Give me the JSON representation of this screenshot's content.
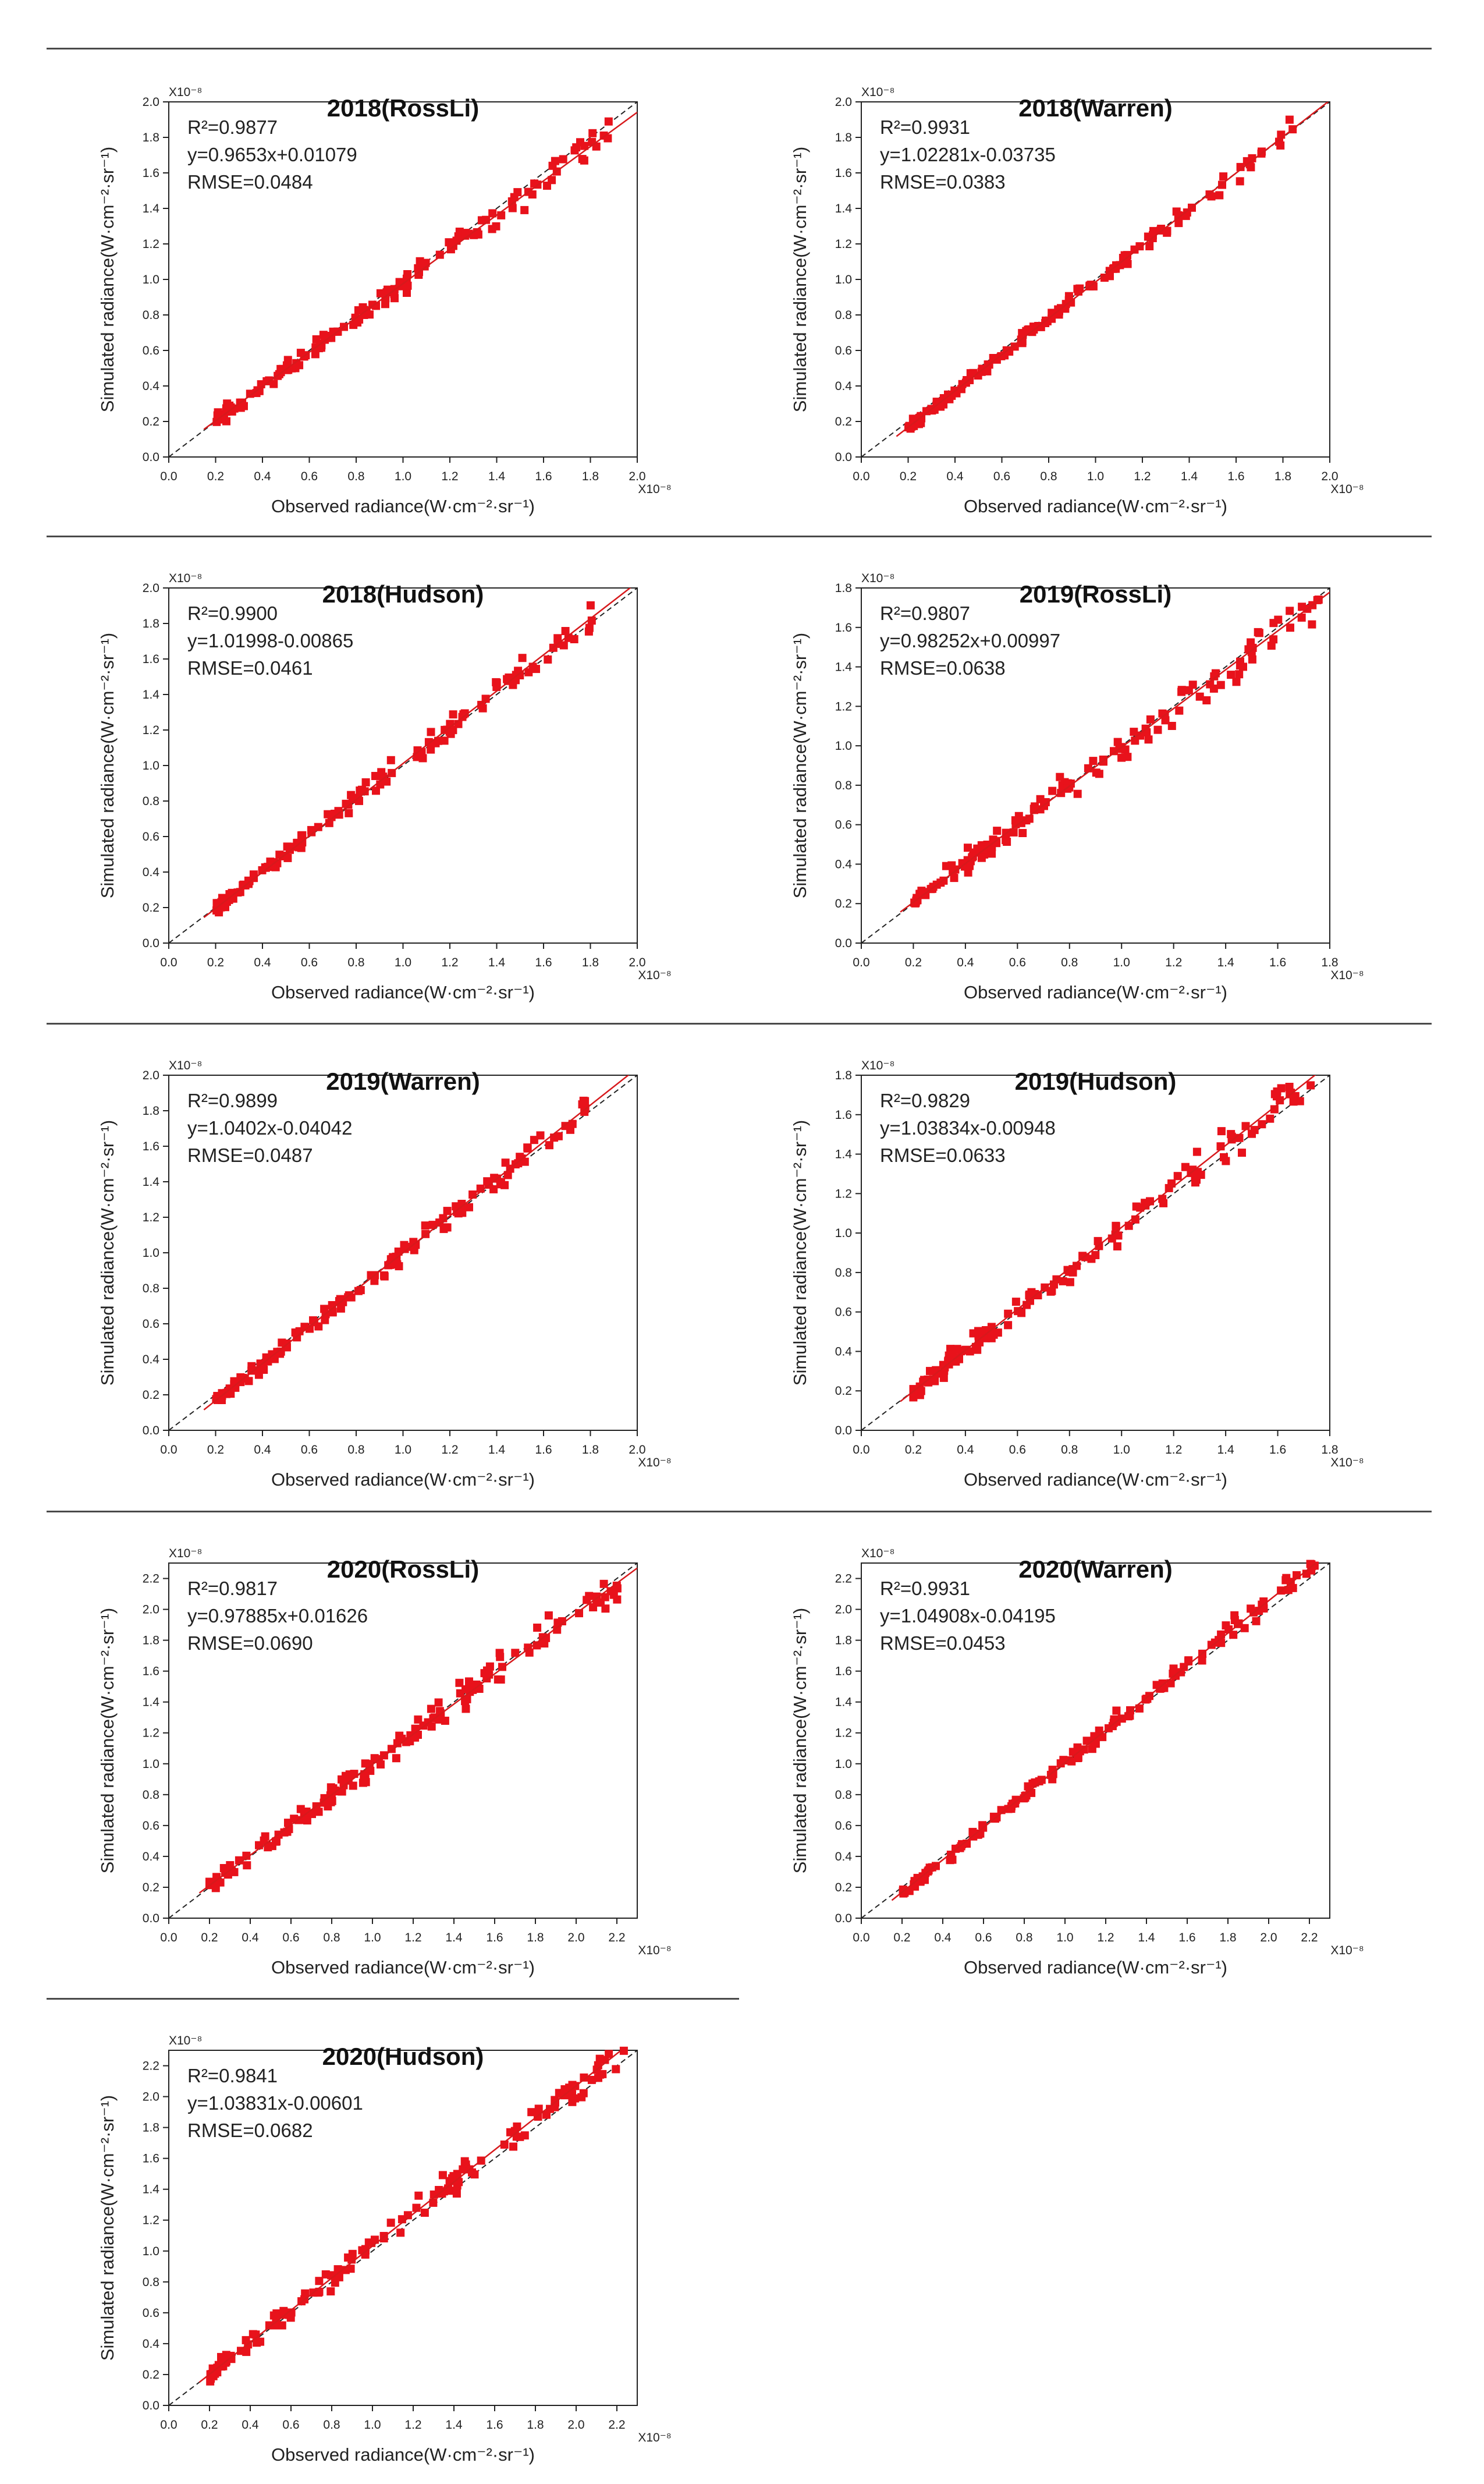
{
  "figure": {
    "x_axis_label": "Observed radiance(W·cm⁻²·sr⁻¹)",
    "y_axis_label": "Simulated radiance(W·cm⁻²·sr⁻¹)",
    "exponent_label": "X10⁻⁸"
  },
  "colors": {
    "points": "#e8121b",
    "fit_line": "#d7191c",
    "one_to_one": "#222222",
    "separator": "#4a4a4a"
  },
  "chart_data": [
    {
      "type": "scatter",
      "title": "2018(RossLi)",
      "r2_label": "R²=0.9877",
      "equation": "y=0.9653x+0.01079",
      "rmse_label": "RMSE=0.0484",
      "xlim": [
        0,
        2.0
      ],
      "ylim": [
        0,
        2.0
      ],
      "ticks": [
        0,
        0.2,
        0.4,
        0.6,
        0.8,
        1.0,
        1.2,
        1.4,
        1.6,
        1.8,
        2.0
      ],
      "tick_labels": [
        "0.0",
        "0.2",
        "0.4",
        "0.6",
        "0.8",
        "1.0",
        "1.2",
        "1.4",
        "1.6",
        "1.8",
        "2.0"
      ],
      "fit": {
        "slope": 0.9653,
        "intercept": 0.01079
      },
      "range": [
        0.2,
        1.9
      ],
      "rmse": 0.0484,
      "seed": 11,
      "n": 140
    },
    {
      "type": "scatter",
      "title": "2018(Warren)",
      "r2_label": "R²=0.9931",
      "equation": "y=1.02281x-0.03735",
      "rmse_label": "RMSE=0.0383",
      "xlim": [
        0,
        2.0
      ],
      "ylim": [
        0,
        2.0
      ],
      "ticks": [
        0,
        0.2,
        0.4,
        0.6,
        0.8,
        1.0,
        1.2,
        1.4,
        1.6,
        1.8,
        2.0
      ],
      "tick_labels": [
        "0.0",
        "0.2",
        "0.4",
        "0.6",
        "0.8",
        "1.0",
        "1.2",
        "1.4",
        "1.6",
        "1.8",
        "2.0"
      ],
      "fit": {
        "slope": 1.02281,
        "intercept": -0.03735
      },
      "range": [
        0.2,
        1.85
      ],
      "rmse": 0.0383,
      "seed": 23,
      "n": 140
    },
    {
      "type": "scatter",
      "title": "2018(Hudson)",
      "r2_label": "R²=0.9900",
      "equation": "y=1.01998-0.00865",
      "rmse_label": "RMSE=0.0461",
      "xlim": [
        0,
        2.0
      ],
      "ylim": [
        0,
        2.0
      ],
      "ticks": [
        0,
        0.2,
        0.4,
        0.6,
        0.8,
        1.0,
        1.2,
        1.4,
        1.6,
        1.8,
        2.0
      ],
      "tick_labels": [
        "0.0",
        "0.2",
        "0.4",
        "0.6",
        "0.8",
        "1.0",
        "1.2",
        "1.4",
        "1.6",
        "1.8",
        "2.0"
      ],
      "fit": {
        "slope": 1.01998,
        "intercept": -0.00865
      },
      "range": [
        0.2,
        1.85
      ],
      "rmse": 0.0461,
      "seed": 37,
      "n": 140
    },
    {
      "type": "scatter",
      "title": "2019(RossLi)",
      "r2_label": "R²=0.9807",
      "equation": "y=0.98252x+0.00997",
      "rmse_label": "RMSE=0.0638",
      "xlim": [
        0,
        1.8
      ],
      "ylim": [
        0,
        1.8
      ],
      "ticks": [
        0,
        0.2,
        0.4,
        0.6,
        0.8,
        1.0,
        1.2,
        1.4,
        1.6,
        1.8
      ],
      "tick_labels": [
        "0.0",
        "0.2",
        "0.4",
        "0.6",
        "0.8",
        "1.0",
        "1.2",
        "1.4",
        "1.6",
        "1.8"
      ],
      "fit": {
        "slope": 0.98252,
        "intercept": 0.00997
      },
      "range": [
        0.2,
        1.78
      ],
      "rmse": 0.0638,
      "seed": 41,
      "n": 140
    },
    {
      "type": "scatter",
      "title": "2019(Warren)",
      "r2_label": "R²=0.9899",
      "equation": "y=1.0402x-0.04042",
      "rmse_label": "RMSE=0.0487",
      "xlim": [
        0,
        2.0
      ],
      "ylim": [
        0,
        2.0
      ],
      "ticks": [
        0,
        0.2,
        0.4,
        0.6,
        0.8,
        1.0,
        1.2,
        1.4,
        1.6,
        1.8,
        2.0
      ],
      "tick_labels": [
        "0.0",
        "0.2",
        "0.4",
        "0.6",
        "0.8",
        "1.0",
        "1.2",
        "1.4",
        "1.6",
        "1.8",
        "2.0"
      ],
      "fit": {
        "slope": 1.0402,
        "intercept": -0.04042
      },
      "range": [
        0.2,
        1.78
      ],
      "rmse": 0.0487,
      "seed": 53,
      "n": 140
    },
    {
      "type": "scatter",
      "title": "2019(Hudson)",
      "r2_label": "R²=0.9829",
      "equation": "y=1.03834x-0.00948",
      "rmse_label": "RMSE=0.0633",
      "xlim": [
        0,
        1.8
      ],
      "ylim": [
        0,
        1.8
      ],
      "ticks": [
        0,
        0.2,
        0.4,
        0.6,
        0.8,
        1.0,
        1.2,
        1.4,
        1.6,
        1.8
      ],
      "tick_labels": [
        "0.0",
        "0.2",
        "0.4",
        "0.6",
        "0.8",
        "1.0",
        "1.2",
        "1.4",
        "1.6",
        "1.8"
      ],
      "fit": {
        "slope": 1.03834,
        "intercept": -0.00948
      },
      "range": [
        0.2,
        1.75
      ],
      "rmse": 0.0633,
      "seed": 67,
      "n": 140
    },
    {
      "type": "scatter",
      "title": "2020(RossLi)",
      "r2_label": "R²=0.9817",
      "equation": "y=0.97885x+0.01626",
      "rmse_label": "RMSE=0.0690",
      "xlim": [
        0,
        2.3
      ],
      "ylim": [
        0,
        2.3
      ],
      "ticks": [
        0,
        0.2,
        0.4,
        0.6,
        0.8,
        1.0,
        1.2,
        1.4,
        1.6,
        1.8,
        2.0,
        2.2
      ],
      "tick_labels": [
        "0.0",
        "0.2",
        "0.4",
        "0.6",
        "0.8",
        "1.0",
        "1.2",
        "1.4",
        "1.6",
        "1.8",
        "2.0",
        "2.2"
      ],
      "fit": {
        "slope": 0.97885,
        "intercept": 0.01626
      },
      "range": [
        0.2,
        2.25
      ],
      "rmse": 0.069,
      "seed": 71,
      "n": 150
    },
    {
      "type": "scatter",
      "title": "2020(Warren)",
      "r2_label": "R²=0.9931",
      "equation": "y=1.04908x-0.04195",
      "rmse_label": "RMSE=0.0453",
      "xlim": [
        0,
        2.3
      ],
      "ylim": [
        0,
        2.3
      ],
      "ticks": [
        0,
        0.2,
        0.4,
        0.6,
        0.8,
        1.0,
        1.2,
        1.4,
        1.6,
        1.8,
        2.0,
        2.2
      ],
      "tick_labels": [
        "0.0",
        "0.2",
        "0.4",
        "0.6",
        "0.8",
        "1.0",
        "1.2",
        "1.4",
        "1.6",
        "1.8",
        "2.0",
        "2.2"
      ],
      "fit": {
        "slope": 1.04908,
        "intercept": -0.04195
      },
      "range": [
        0.2,
        2.25
      ],
      "rmse": 0.0453,
      "seed": 83,
      "n": 150
    },
    {
      "type": "scatter",
      "title": "2020(Hudson)",
      "r2_label": "R²=0.9841",
      "equation": "y=1.03831x-0.00601",
      "rmse_label": "RMSE=0.0682",
      "xlim": [
        0,
        2.3
      ],
      "ylim": [
        0,
        2.3
      ],
      "ticks": [
        0,
        0.2,
        0.4,
        0.6,
        0.8,
        1.0,
        1.2,
        1.4,
        1.6,
        1.8,
        2.0,
        2.2
      ],
      "tick_labels": [
        "0.0",
        "0.2",
        "0.4",
        "0.6",
        "0.8",
        "1.0",
        "1.2",
        "1.4",
        "1.6",
        "1.8",
        "2.0",
        "2.2"
      ],
      "fit": {
        "slope": 1.03831,
        "intercept": -0.00601
      },
      "range": [
        0.2,
        2.25
      ],
      "rmse": 0.0682,
      "seed": 97,
      "n": 150
    }
  ]
}
